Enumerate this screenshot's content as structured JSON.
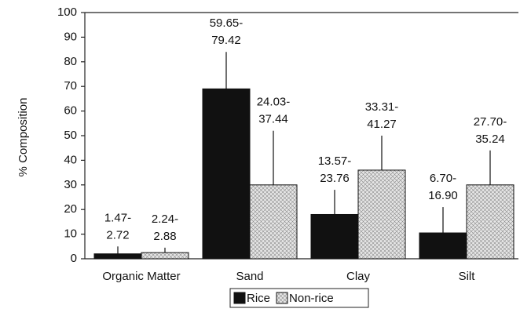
{
  "chart_data": {
    "type": "bar",
    "ylabel": "% Composition",
    "categories": [
      "Organic Matter",
      "Sand",
      "Clay",
      "Silt"
    ],
    "series": [
      {
        "name": "Rice",
        "color": "#111111",
        "pattern": "solid",
        "values": [
          2,
          69,
          18,
          10.5
        ],
        "errors": [
          3,
          15,
          10,
          10.5
        ],
        "range_labels": [
          [
            "1.47-",
            "2.72"
          ],
          [
            "59.65-",
            "79.42"
          ],
          [
            "13.57-",
            "23.76"
          ],
          [
            "6.70-",
            "16.90"
          ]
        ]
      },
      {
        "name": "Non-rice",
        "color": "#d8d8d8",
        "pattern": "crosshatch",
        "values": [
          2.5,
          30,
          36,
          30
        ],
        "errors": [
          2,
          22,
          14,
          14
        ],
        "range_labels": [
          [
            "2.24-",
            "2.88"
          ],
          [
            "24.03-",
            "37.44"
          ],
          [
            "33.31-",
            "41.27"
          ],
          [
            "27.70-",
            "35.24"
          ]
        ]
      }
    ],
    "ylim": [
      0,
      100
    ],
    "yticks": [
      0,
      10,
      20,
      30,
      40,
      50,
      60,
      70,
      80,
      90,
      100
    ],
    "legend": "bottom"
  }
}
